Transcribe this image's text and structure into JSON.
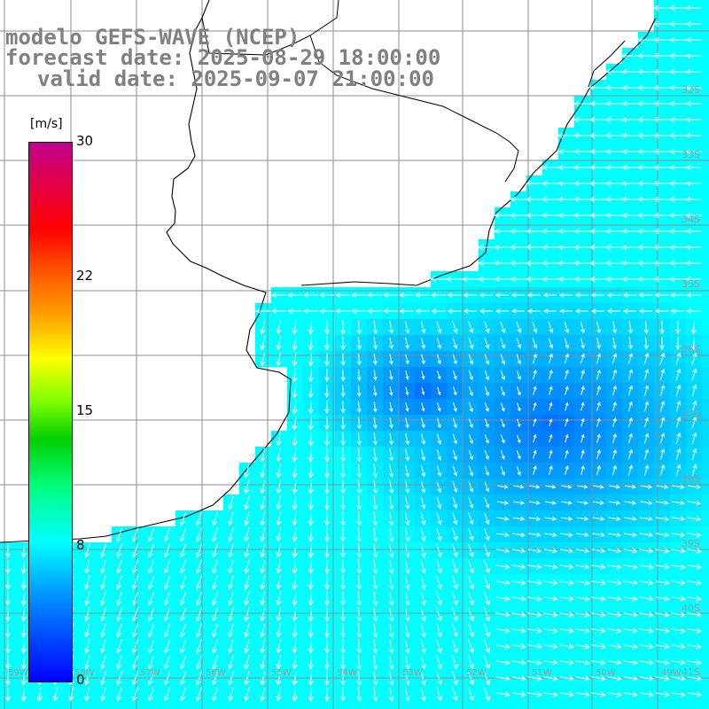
{
  "title": {
    "line1": "modelo GEFS-WAVE (NCEP)",
    "line2": "forecast date: 2025-08-29 18:00:00",
    "line3": "valid date: 2025-09-07 21:00:00"
  },
  "colorbar": {
    "unit": "[m/s]",
    "ticks": [
      {
        "label": "30",
        "value": 30
      },
      {
        "label": "22",
        "value": 22
      },
      {
        "label": "15",
        "value": 15
      },
      {
        "label": "8",
        "value": 8
      },
      {
        "label": "0",
        "value": 0
      }
    ],
    "range": [
      0,
      30
    ]
  },
  "map": {
    "lat_labels": [
      "32S",
      "33S",
      "34S",
      "35S",
      "36S",
      "37S",
      "38S",
      "39S",
      "40S",
      "41S"
    ],
    "lon_labels": [
      "59W",
      "58W",
      "57W",
      "56W",
      "55W",
      "54W",
      "53W",
      "52W",
      "51W",
      "50W",
      "49W"
    ],
    "colors": {
      "land": "#ffffff",
      "grid": "#8c8c8c",
      "coast": "#000000",
      "arrow": "#ffffff"
    }
  }
}
